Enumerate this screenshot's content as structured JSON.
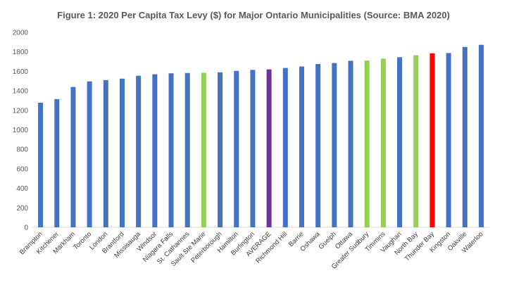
{
  "chart_data": {
    "type": "bar",
    "title": "Figure 1: 2020 Per Capita Tax Levy ($) for Major Ontario Municipalities (Source: BMA 2020)",
    "xlabel": "",
    "ylabel": "",
    "ylim": [
      0,
      2000
    ],
    "yticks": [
      0,
      200,
      400,
      600,
      800,
      1000,
      1200,
      1400,
      1600,
      1800,
      2000
    ],
    "grid": false,
    "legend": "none",
    "categories": [
      "Brampton",
      "Kitchener",
      "Markham",
      "Toronto",
      "London",
      "Brantford",
      "Missisauga",
      "Windsor",
      "Niagara Falls",
      "St. Catharines",
      "Sault Ste Marie",
      "Peterborough",
      "Hamilton",
      "Burlington",
      "AVERAGE",
      "Richmond Hill",
      "Barrie",
      "Oshawa",
      "Guelph",
      "Ottawa",
      "Greater Sudbury",
      "Timmins",
      "Vaughan",
      "North Bay",
      "Thunder Bay",
      "Kingston",
      "Oakville",
      "Waterloo"
    ],
    "values": [
      1278,
      1315,
      1440,
      1497,
      1510,
      1525,
      1555,
      1570,
      1580,
      1583,
      1585,
      1590,
      1605,
      1615,
      1620,
      1635,
      1650,
      1675,
      1685,
      1708,
      1710,
      1730,
      1745,
      1765,
      1785,
      1788,
      1850,
      1872
    ],
    "colors": [
      "#4472C4",
      "#4472C4",
      "#4472C4",
      "#4472C4",
      "#4472C4",
      "#4472C4",
      "#4472C4",
      "#4472C4",
      "#4472C4",
      "#4472C4",
      "#92D050",
      "#4472C4",
      "#4472C4",
      "#4472C4",
      "#7030A0",
      "#4472C4",
      "#4472C4",
      "#4472C4",
      "#4472C4",
      "#4472C4",
      "#92D050",
      "#92D050",
      "#4472C4",
      "#92D050",
      "#FF0000",
      "#4472C4",
      "#4472C4",
      "#4472C4"
    ]
  }
}
